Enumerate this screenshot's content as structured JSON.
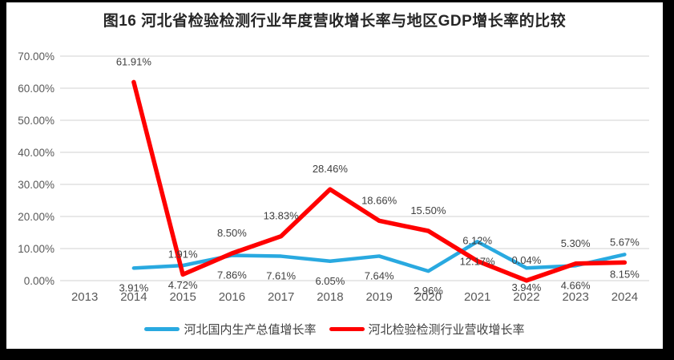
{
  "title": "图16 河北省检验检测行业年度营收增长率与地区GDP增长率的比较",
  "colors": {
    "frame": "#000000",
    "background": "#FFFFFF",
    "gridline": "#D9D9D9",
    "axis_text": "#595959",
    "data_label_text": "#404040",
    "title_text": "#262626"
  },
  "chart_data": {
    "type": "line",
    "title": "图16 河北省检验检测行业年度营收增长率与地区GDP增长率的比较",
    "categories": [
      "2013",
      "2014",
      "2015",
      "2016",
      "2017",
      "2018",
      "2019",
      "2020",
      "2021",
      "2022",
      "2023",
      "2024"
    ],
    "series": [
      {
        "name": "河北国内生产总值增长率",
        "color": "#29A9E0",
        "label_position": "below",
        "values": [
          null,
          3.91,
          4.72,
          7.86,
          7.61,
          6.05,
          7.64,
          2.96,
          12.17,
          3.94,
          4.66,
          8.15
        ]
      },
      {
        "name": "河北检验检测行业营收增长率",
        "color": "#FF0000",
        "label_position": "above",
        "values": [
          null,
          61.91,
          1.91,
          8.5,
          13.83,
          28.46,
          18.66,
          15.5,
          6.12,
          0.04,
          5.3,
          5.67
        ]
      }
    ],
    "xlabel": "",
    "ylabel": "",
    "y_axis": {
      "min": 0,
      "max": 70,
      "step": 10,
      "tick_format": "0.00%"
    },
    "tick_labels_y": [
      "0.00%",
      "10.00%",
      "20.00%",
      "30.00%",
      "40.00%",
      "50.00%",
      "60.00%",
      "70.00%"
    ],
    "grid": true,
    "data_labels": true,
    "legend_position": "bottom"
  }
}
